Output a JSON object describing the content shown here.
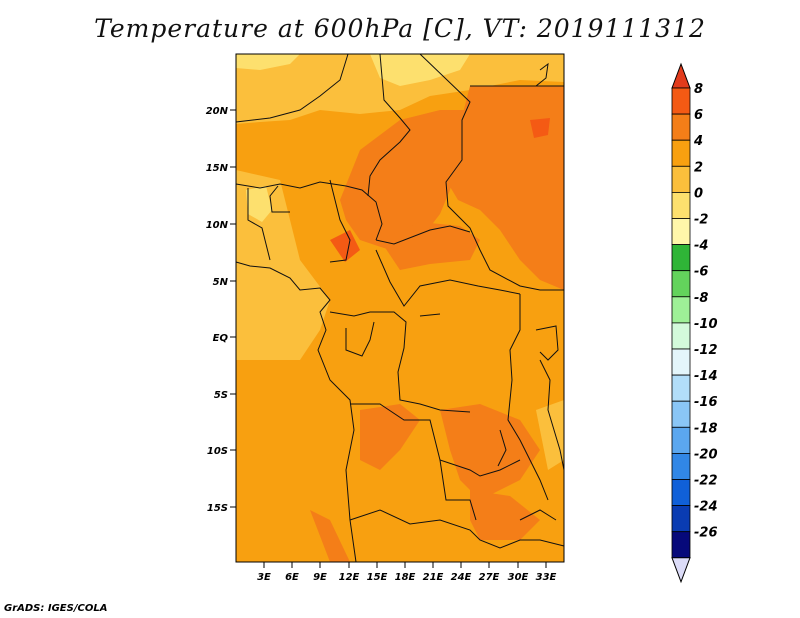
{
  "title": "Temperature at 600hPa [C], VT: 2019111312",
  "credit": "GrADS: IGES/COLA",
  "lat_ticks": [
    "20N",
    "15N",
    "10N",
    "5N",
    "EQ",
    "5S",
    "10S",
    "15S"
  ],
  "lon_ticks": [
    "3E",
    "6E",
    "9E",
    "12E",
    "15E",
    "18E",
    "21E",
    "24E",
    "27E",
    "30E",
    "33E"
  ],
  "colorbar": {
    "labels": [
      "8",
      "6",
      "4",
      "2",
      "0",
      "-2",
      "-4",
      "-6",
      "-8",
      "-10",
      "-12",
      "-14",
      "-16",
      "-18",
      "-20",
      "-22",
      "-24",
      "-26"
    ],
    "colors": [
      "#e23b1c",
      "#f45a14",
      "#f47e18",
      "#f8a010",
      "#fbbf3c",
      "#fde06e",
      "#fff7aa",
      "#2fb537",
      "#63d35c",
      "#9ef097",
      "#d3fadb",
      "#e4f6fb",
      "#b2def9",
      "#8ac6f6",
      "#5ba7ef",
      "#3187e6",
      "#1060d8",
      "#0a3cb2",
      "#06097a",
      "#dcdcf8"
    ]
  }
}
